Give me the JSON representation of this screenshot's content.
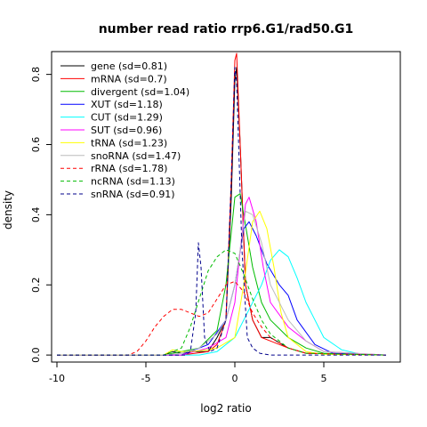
{
  "chart_data": {
    "type": "line",
    "title": "number read ratio rrp6.G1/rad50.G1",
    "xlabel": "log2 ratio",
    "ylabel": "density",
    "xlim": [
      -10.3,
      9.3
    ],
    "ylim": [
      -0.02,
      0.865
    ],
    "x_ticks": [
      -10,
      -5,
      0,
      5
    ],
    "x_tick_labels": [
      "-10",
      "-5",
      "0",
      "5"
    ],
    "y_ticks": [
      0.0,
      0.2,
      0.4,
      0.6,
      0.8
    ],
    "y_tick_labels": [
      "0.0",
      "0.2",
      "0.4",
      "0.6",
      "0.8"
    ],
    "legend_position": "top-left",
    "series": [
      {
        "name": "gene (sd=0.81)",
        "color": "#000000",
        "dash": "solid",
        "x": [
          -10,
          -4,
          -3.5,
          -3,
          -2.5,
          -1.5,
          -1,
          -0.5,
          -0.2,
          0,
          0.1,
          0.3,
          0.6,
          1,
          1.5,
          2,
          3,
          4,
          8.5
        ],
        "y": [
          0,
          0,
          0.01,
          0.005,
          0.01,
          0.01,
          0.05,
          0.1,
          0.45,
          0.78,
          0.82,
          0.6,
          0.2,
          0.1,
          0.05,
          0.05,
          0.02,
          0.005,
          0
        ]
      },
      {
        "name": "mRNA (sd=0.7)",
        "color": "#ff0000",
        "dash": "solid",
        "x": [
          -10,
          -3,
          -1.5,
          -1,
          -0.5,
          -0.2,
          0,
          0.1,
          0.3,
          0.6,
          1,
          1.5,
          2,
          3,
          4,
          8.5
        ],
        "y": [
          0,
          0,
          0.01,
          0.03,
          0.1,
          0.5,
          0.84,
          0.86,
          0.6,
          0.2,
          0.1,
          0.05,
          0.04,
          0.02,
          0.005,
          0
        ]
      },
      {
        "name": "divergent (sd=1.04)",
        "color": "#00bb00",
        "dash": "solid",
        "x": [
          -10,
          -4,
          -2,
          -1,
          -0.5,
          0,
          0.3,
          0.5,
          1,
          1.5,
          2,
          3,
          4,
          5,
          8.5
        ],
        "y": [
          0,
          0,
          0.02,
          0.07,
          0.2,
          0.45,
          0.46,
          0.4,
          0.25,
          0.15,
          0.1,
          0.05,
          0.02,
          0.005,
          0
        ]
      },
      {
        "name": "XUT (sd=1.18)",
        "color": "#0000ff",
        "dash": "solid",
        "x": [
          -10,
          -3,
          -1.5,
          -0.5,
          0,
          0.5,
          0.8,
          1.2,
          1.8,
          2.5,
          3,
          3.5,
          4.5,
          5.5,
          8.5
        ],
        "y": [
          0,
          0,
          0.03,
          0.1,
          0.2,
          0.36,
          0.38,
          0.34,
          0.26,
          0.2,
          0.17,
          0.1,
          0.03,
          0.005,
          0
        ]
      },
      {
        "name": "CUT (sd=1.29)",
        "color": "#00ffff",
        "dash": "solid",
        "x": [
          -10,
          -2,
          -1,
          0,
          0.5,
          1,
          1.5,
          2,
          2.5,
          3,
          3.5,
          4,
          4.5,
          5,
          6,
          7,
          8.5
        ],
        "y": [
          0,
          0,
          0.01,
          0.05,
          0.1,
          0.15,
          0.2,
          0.27,
          0.3,
          0.28,
          0.22,
          0.15,
          0.1,
          0.05,
          0.015,
          0.003,
          0
        ]
      },
      {
        "name": "SUT (sd=0.96)",
        "color": "#ff00ff",
        "dash": "solid",
        "x": [
          -10,
          -3,
          -1.5,
          -0.5,
          0,
          0.3,
          0.6,
          0.8,
          1.2,
          1.6,
          2,
          3,
          4,
          5,
          8.5
        ],
        "y": [
          0,
          0,
          0.02,
          0.05,
          0.15,
          0.3,
          0.43,
          0.45,
          0.38,
          0.25,
          0.15,
          0.08,
          0.04,
          0.01,
          0
        ]
      },
      {
        "name": "tRNA (sd=1.23)",
        "color": "#ffff00",
        "dash": "solid",
        "x": [
          -10,
          -4,
          -3.5,
          -3,
          -2.5,
          -1.5,
          -1,
          0,
          0.5,
          1,
          1.4,
          1.8,
          2.2,
          2.6,
          3,
          4,
          5,
          8.5
        ],
        "y": [
          0,
          0,
          0.015,
          0.01,
          0.01,
          0.015,
          0.02,
          0.05,
          0.2,
          0.38,
          0.41,
          0.36,
          0.25,
          0.12,
          0.05,
          0.01,
          0.002,
          0
        ]
      },
      {
        "name": "snoRNA (sd=1.47)",
        "color": "#bbbbbb",
        "dash": "solid",
        "x": [
          -10,
          -4,
          -3,
          -2,
          -1.5,
          -1,
          -0.5,
          0,
          0.3,
          0.6,
          1,
          1.5,
          2,
          3,
          4,
          5,
          8.5
        ],
        "y": [
          0,
          0,
          0.005,
          0.02,
          0.04,
          0.06,
          0.1,
          0.2,
          0.3,
          0.41,
          0.4,
          0.32,
          0.2,
          0.1,
          0.04,
          0.01,
          0
        ]
      },
      {
        "name": "rRNA (sd=1.78)",
        "color": "#ff0000",
        "dash": "dashed",
        "x": [
          -10,
          -6,
          -5.5,
          -5,
          -4.5,
          -4,
          -3.5,
          -3,
          -2.5,
          -2,
          -1.5,
          -1,
          -0.5,
          0,
          0.5,
          1,
          1.5,
          2,
          3,
          4,
          8.5
        ],
        "y": [
          0,
          0,
          0.01,
          0.04,
          0.08,
          0.11,
          0.13,
          0.13,
          0.12,
          0.11,
          0.12,
          0.16,
          0.2,
          0.21,
          0.18,
          0.12,
          0.08,
          0.05,
          0.02,
          0.005,
          0
        ]
      },
      {
        "name": "ncRNA (sd=1.13)",
        "color": "#00bb00",
        "dash": "dashed",
        "x": [
          -10,
          -4,
          -3,
          -2.5,
          -2,
          -1.5,
          -1,
          -0.5,
          0,
          0.5,
          1,
          1.5,
          2,
          3,
          4,
          8.5
        ],
        "y": [
          0,
          0,
          0.02,
          0.08,
          0.16,
          0.24,
          0.28,
          0.3,
          0.29,
          0.23,
          0.16,
          0.1,
          0.06,
          0.02,
          0.005,
          0
        ]
      },
      {
        "name": "snRNA (sd=0.91)",
        "color": "#00008b",
        "dash": "dashed",
        "x": [
          -10,
          -2.8,
          -2.5,
          -2.2,
          -2.05,
          -1.9,
          -1.7,
          -1.4,
          -1,
          -0.5,
          -0.2,
          0,
          0.1,
          0.4,
          0.7,
          1,
          1.4,
          2,
          8.5
        ],
        "y": [
          0,
          0,
          0.01,
          0.12,
          0.32,
          0.25,
          0.05,
          0.01,
          0.02,
          0.1,
          0.5,
          0.82,
          0.78,
          0.3,
          0.05,
          0.02,
          0.005,
          0,
          0
        ]
      }
    ]
  }
}
